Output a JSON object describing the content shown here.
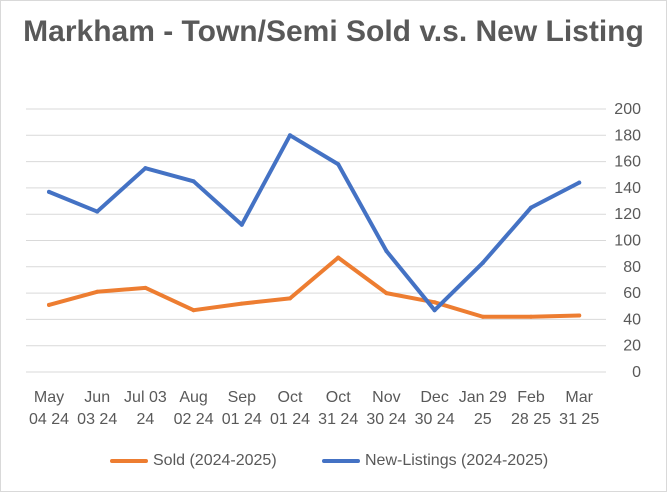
{
  "chart_data": {
    "type": "line",
    "title": "Markham - Town/Semi Sold v.s. New Listing",
    "categories": [
      [
        "May",
        "04 24"
      ],
      [
        "Jun",
        "03 24"
      ],
      [
        "Jul 03",
        "24"
      ],
      [
        "Aug",
        "02 24"
      ],
      [
        "Sep",
        "01 24"
      ],
      [
        "Oct",
        "01 24"
      ],
      [
        "Oct",
        "31 24"
      ],
      [
        "Nov",
        "30 24"
      ],
      [
        "Dec",
        "30 24"
      ],
      [
        "Jan 29",
        "25"
      ],
      [
        "Feb",
        "28 25"
      ],
      [
        "Mar",
        "31 25"
      ]
    ],
    "y_ticks": [
      "0",
      "20",
      "40",
      "60",
      "80",
      "100",
      "120",
      "140",
      "160",
      "180",
      "200"
    ],
    "ylim": [
      0,
      200
    ],
    "y_axis_side": "right",
    "grid": true,
    "legend_position": "bottom",
    "series": [
      {
        "name": "Sold (2024-2025)",
        "color": "#ED7D31",
        "values": [
          51,
          61,
          64,
          47,
          52,
          56,
          87,
          60,
          53,
          42,
          42,
          43
        ]
      },
      {
        "name": "New-Listings (2024-2025)",
        "color": "#4472C4",
        "values": [
          137,
          122,
          155,
          145,
          112,
          180,
          158,
          92,
          47,
          83,
          125,
          144
        ]
      }
    ]
  }
}
